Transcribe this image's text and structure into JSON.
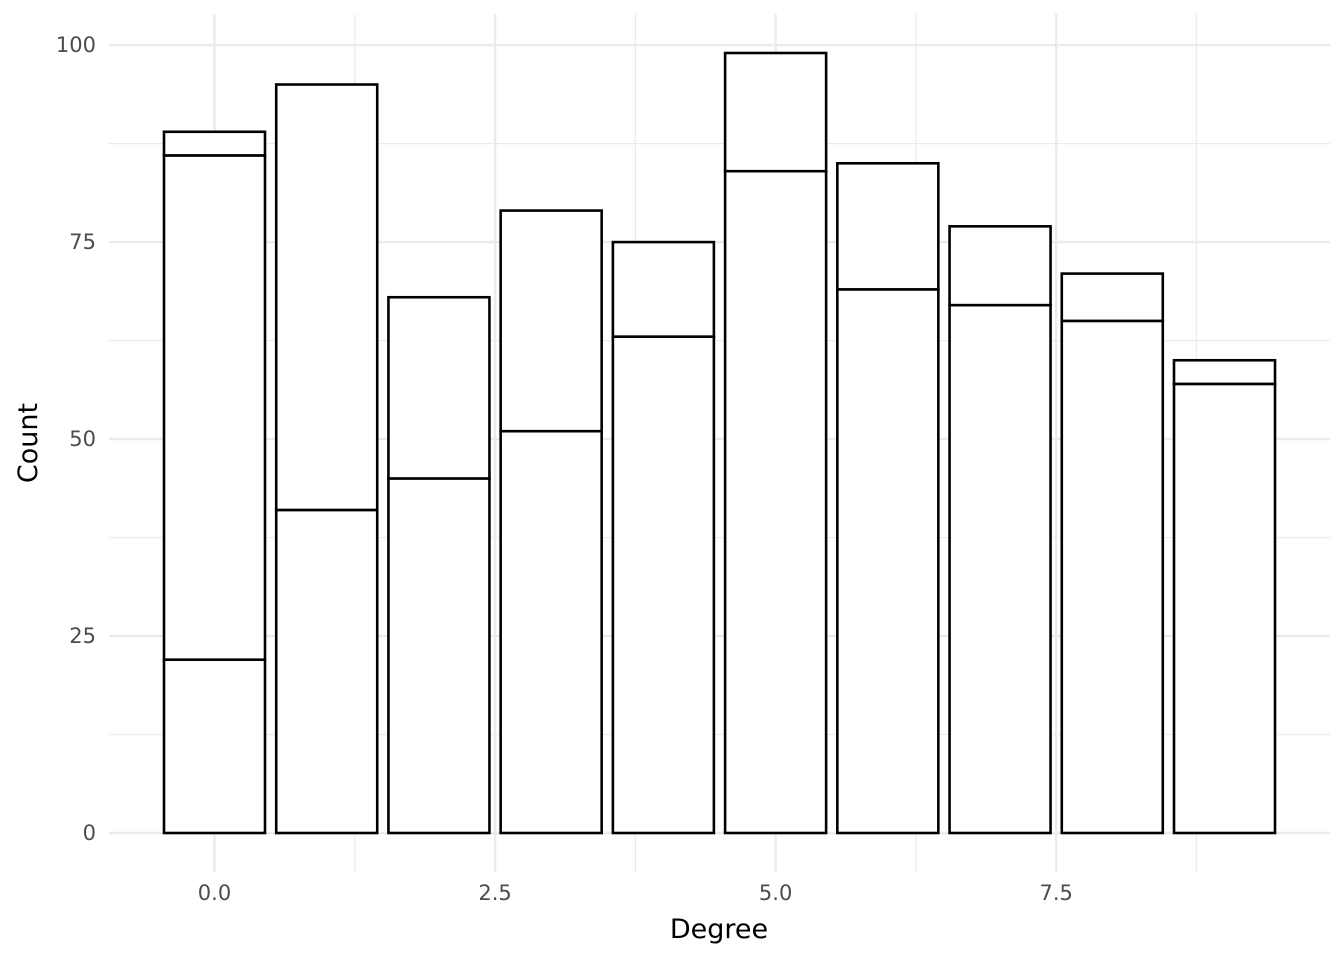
{
  "chart_data": {
    "type": "bar",
    "stacked": true,
    "title": "",
    "xlabel": "Degree",
    "ylabel": "Count",
    "x": [
      0,
      1,
      2,
      3,
      4,
      5,
      6,
      7,
      8,
      9
    ],
    "stack_boundaries": [
      [
        22,
        86,
        89
      ],
      [
        41,
        95
      ],
      [
        45,
        68
      ],
      [
        51,
        79
      ],
      [
        63,
        75
      ],
      [
        84,
        99
      ],
      [
        69,
        85
      ],
      [
        67,
        77
      ],
      [
        65,
        71
      ],
      [
        57,
        60
      ]
    ],
    "totals": [
      89,
      95,
      68,
      79,
      75,
      99,
      85,
      77,
      71,
      60
    ],
    "xlim": [
      -0.94,
      9.94
    ],
    "ylim": [
      -4.95,
      103.95
    ],
    "x_ticks": [
      0,
      2.5,
      5,
      7.5
    ],
    "x_tick_labels": [
      "0.0",
      "2.5",
      "5.0",
      "7.5"
    ],
    "y_ticks": [
      0,
      25,
      50,
      75,
      100
    ],
    "y_tick_labels": [
      "0",
      "25",
      "50",
      "75",
      "100"
    ],
    "grid": true,
    "bar_fill": "#ffffff",
    "bar_outline": "#000000",
    "grid_color": "#ebebeb"
  }
}
